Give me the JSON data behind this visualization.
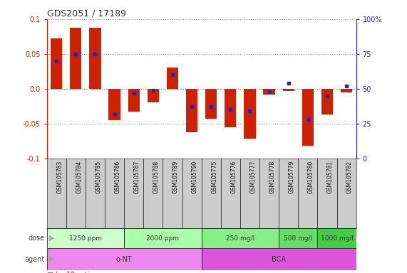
{
  "title": "GDS2051 / 17189",
  "samples": [
    "GSM105783",
    "GSM105784",
    "GSM105785",
    "GSM105786",
    "GSM105787",
    "GSM105788",
    "GSM105789",
    "GSM105790",
    "GSM105775",
    "GSM105776",
    "GSM105777",
    "GSM105778",
    "GSM105779",
    "GSM105780",
    "GSM105781",
    "GSM105782"
  ],
  "log10_ratio": [
    0.072,
    0.088,
    0.088,
    -0.045,
    -0.033,
    -0.02,
    0.03,
    -0.063,
    -0.043,
    -0.055,
    -0.072,
    -0.008,
    -0.003,
    -0.082,
    -0.037,
    -0.005
  ],
  "percentile_rank": [
    70,
    75,
    75,
    32,
    47,
    49,
    60,
    37,
    37,
    35,
    34,
    48,
    54,
    28,
    45,
    52
  ],
  "ylim": [
    -0.1,
    0.1
  ],
  "yticks_left": [
    -0.1,
    -0.05,
    0.0,
    0.05,
    0.1
  ],
  "yticks_right": [
    0,
    25,
    50,
    75,
    100
  ],
  "bar_color": "#cc2200",
  "dot_color": "#2222cc",
  "grid_color": "#888888",
  "zero_line_color": "#cc2200",
  "background_color": "#ffffff",
  "sample_box_color": "#cccccc",
  "dose_groups": [
    {
      "label": "1250 ppm",
      "start": 0,
      "end": 3,
      "color": "#ccffcc"
    },
    {
      "label": "2000 ppm",
      "start": 4,
      "end": 7,
      "color": "#aaffaa"
    },
    {
      "label": "250 mg/l",
      "start": 8,
      "end": 11,
      "color": "#88ee88"
    },
    {
      "label": "500 mg/l",
      "start": 12,
      "end": 13,
      "color": "#66dd66"
    },
    {
      "label": "1000 mg/l",
      "start": 14,
      "end": 15,
      "color": "#44cc44"
    }
  ],
  "agent_groups": [
    {
      "label": "o-NT",
      "start": 0,
      "end": 7,
      "color": "#ee88ee"
    },
    {
      "label": "BCA",
      "start": 8,
      "end": 15,
      "color": "#dd55dd"
    }
  ],
  "arrow_color": "#999999",
  "label_color": "#444444"
}
